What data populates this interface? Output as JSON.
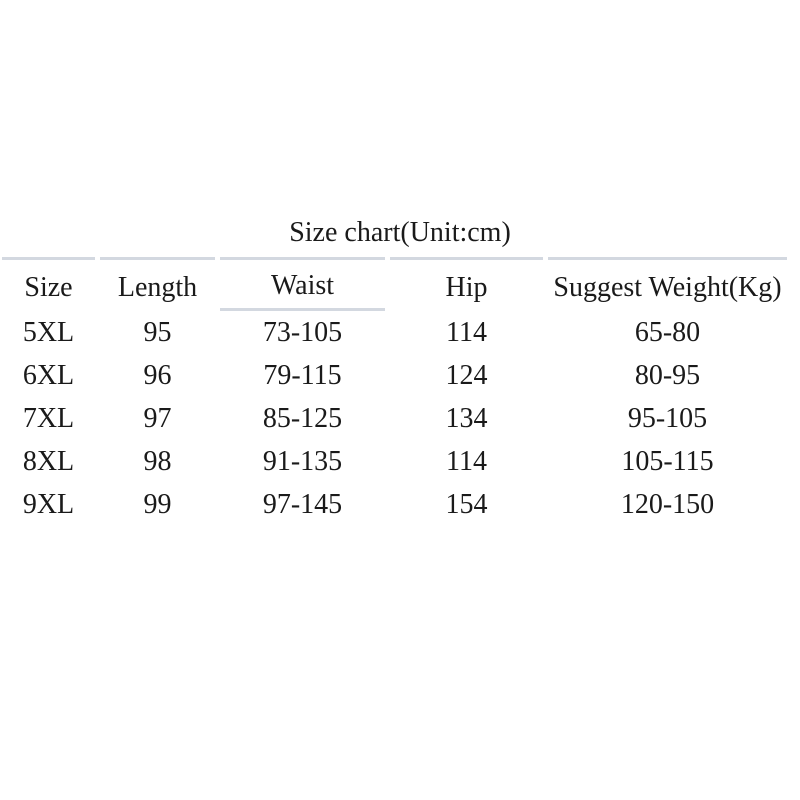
{
  "chart_data": {
    "type": "table",
    "title": "Size chart(Unit:cm)",
    "columns": [
      "Size",
      "Length",
      "Waist",
      "Hip",
      "Suggest Weight(Kg)"
    ],
    "rows": [
      [
        "5XL",
        "95",
        "73-105",
        "114",
        "65-80"
      ],
      [
        "6XL",
        "96",
        "79-115",
        "124",
        "80-95"
      ],
      [
        "7XL",
        "97",
        "85-125",
        "134",
        "95-105"
      ],
      [
        "8XL",
        "98",
        "91-135",
        "114",
        "105-115"
      ],
      [
        "9XL",
        "99",
        "97-145",
        "154",
        "120-150"
      ]
    ],
    "units": "cm",
    "layout": "plain table, light rule above header row, extra rule under Waist header, no vertical borders"
  },
  "colors": {
    "background": "#ffffff",
    "text": "#1a1a1a",
    "rule": "#d3d8e0"
  }
}
